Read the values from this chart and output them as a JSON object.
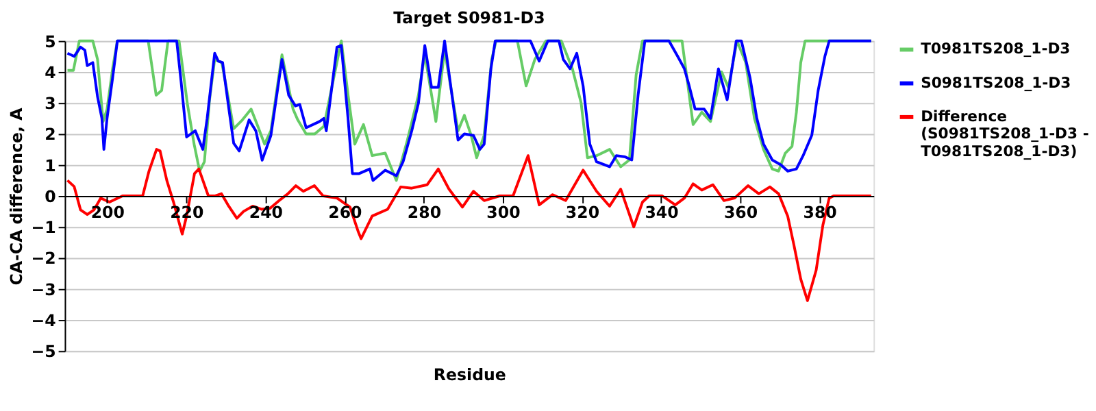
{
  "chart_data": {
    "type": "line",
    "title": "Target S0981-D3",
    "xlabel": "Residue",
    "ylabel": "CA-CA difference, A",
    "xlim": [
      189.3,
      393.7
    ],
    "xticks": [
      200,
      220,
      240,
      260,
      280,
      300,
      320,
      340,
      360,
      380
    ],
    "ylim": [
      -5,
      5
    ],
    "yticks": [
      -5,
      -4,
      -3,
      -2,
      -1,
      0,
      1,
      2,
      3,
      4,
      5
    ],
    "grid": "y",
    "legend": "right",
    "line_style": "solid",
    "series": [
      {
        "name": "T0981TS208_1-D3",
        "color": "#66cc66",
        "x": [
          190,
          191.5,
          193,
          196.4,
          197.6,
          199,
          200,
          201.4,
          202.6,
          210.4,
          212.4,
          213.8,
          215.4,
          218.2,
          220.3,
          222,
          223.4,
          224.6,
          225.9,
          227.2,
          229,
          230.3,
          232,
          234.2,
          236.4,
          238.1,
          239.8,
          241.4,
          244.2,
          247,
          248.2,
          250.3,
          252.5,
          254.8,
          259.2,
          260.9,
          262.6,
          264.8,
          267,
          270.3,
          273.1,
          275.9,
          278.7,
          280.3,
          282,
          283.1,
          285.3,
          287,
          288.7,
          290.3,
          292,
          293.4,
          295.3,
          297.2,
          298.3,
          303.7,
          305.9,
          308.1,
          310.9,
          314.8,
          317.6,
          319.8,
          321.4,
          323.7,
          327,
          329.8,
          332,
          333.7,
          335.3,
          345.3,
          348.1,
          350.3,
          352.5,
          355.3,
          357,
          359.2,
          361.4,
          363.6,
          365.9,
          368.1,
          369.7,
          371.4,
          373.1,
          374.2,
          375.3,
          376.4,
          393.1
        ],
        "values": [
          4.05,
          4.05,
          5,
          5,
          4.4,
          2.4,
          2.8,
          4.1,
          5,
          5,
          3.25,
          3.4,
          5,
          5,
          2.97,
          1.67,
          0.8,
          1.1,
          3.1,
          4.4,
          4.3,
          3.4,
          2.17,
          2.45,
          2.8,
          2.25,
          1.67,
          2.1,
          4.55,
          2.8,
          2.45,
          2.0,
          2.0,
          2.25,
          5,
          3.26,
          1.67,
          2.3,
          1.3,
          1.38,
          0.5,
          1.8,
          3.26,
          4.57,
          3.26,
          2.4,
          4.7,
          3.4,
          2.1,
          2.6,
          1.96,
          1.23,
          1.96,
          4.4,
          5,
          5,
          3.55,
          4.4,
          5,
          5,
          4.1,
          3.0,
          1.23,
          1.3,
          1.5,
          0.94,
          1.16,
          3.9,
          5,
          5,
          2.3,
          2.7,
          2.4,
          4.0,
          3.5,
          5,
          4.3,
          2.5,
          1.5,
          0.87,
          0.8,
          1.38,
          1.6,
          2.7,
          4.3,
          5,
          5
        ]
      },
      {
        "name": "S0981TS208_1-D3",
        "color": "#0000ff",
        "x": [
          190,
          191.7,
          193.3,
          194.4,
          195,
          196.4,
          197.6,
          198.7,
          199.2,
          200,
          201.4,
          202.6,
          217.6,
          218.7,
          220.1,
          222.3,
          224.2,
          225.3,
          227.2,
          228.1,
          229.2,
          230.9,
          232,
          233.4,
          235.9,
          237.6,
          239.2,
          241.4,
          244.2,
          245.9,
          247.6,
          248.7,
          250.3,
          253.7,
          254.8,
          255.4,
          258.1,
          259.2,
          260.9,
          262,
          263.7,
          266.4,
          267.2,
          270.3,
          273.1,
          274.8,
          277,
          278.7,
          280.3,
          282,
          283.7,
          285.3,
          287,
          288.7,
          290.3,
          292.6,
          294.2,
          295.3,
          297,
          298.1,
          307,
          309.2,
          311.4,
          314.2,
          315.3,
          317,
          318.7,
          320.3,
          322,
          323.7,
          327,
          328.7,
          330.9,
          332.6,
          334.2,
          335.9,
          342,
          344.2,
          345.9,
          347,
          348.6,
          350.9,
          352.5,
          354.5,
          356.7,
          359,
          360.3,
          362.5,
          364.2,
          365.9,
          368.1,
          370.3,
          372,
          374.2,
          375.9,
          378.1,
          379.7,
          381.4,
          382.5,
          393.1
        ],
        "values": [
          4.6,
          4.5,
          4.8,
          4.7,
          4.2,
          4.3,
          3.2,
          2.5,
          1.5,
          2.5,
          3.8,
          5,
          5,
          3.7,
          1.9,
          2.1,
          1.5,
          2.5,
          4.6,
          4.35,
          4.3,
          2.7,
          1.7,
          1.45,
          2.45,
          2.1,
          1.15,
          1.95,
          4.4,
          3.25,
          2.9,
          2.95,
          2.2,
          2.4,
          2.5,
          2.1,
          4.8,
          4.85,
          2.5,
          0.72,
          0.72,
          0.87,
          0.5,
          0.83,
          0.65,
          1.1,
          2.1,
          3.0,
          4.85,
          3.5,
          3.5,
          5,
          3.4,
          1.8,
          2.0,
          1.95,
          1.5,
          1.67,
          4.1,
          5,
          5,
          4.35,
          5,
          5,
          4.4,
          4.1,
          4.6,
          3.55,
          1.67,
          1.1,
          0.94,
          1.3,
          1.26,
          1.16,
          3.26,
          5,
          5,
          4.5,
          4.1,
          3.6,
          2.8,
          2.8,
          2.5,
          4.1,
          3.1,
          5,
          5,
          3.8,
          2.5,
          1.67,
          1.16,
          1.0,
          0.8,
          0.87,
          1.3,
          1.96,
          3.4,
          4.5,
          5,
          5
        ]
      },
      {
        "name": "Difference\n(S0981TS208_1-D3 -\nT0981TS208_1-D3)",
        "color": "#ff0000",
        "x": [
          190,
          191.7,
          193.3,
          195,
          196.7,
          198.4,
          200.6,
          203.9,
          209,
          210.6,
          212.5,
          213.4,
          215.1,
          216.8,
          219,
          220.1,
          222.1,
          223.2,
          225.6,
          227.2,
          228.9,
          230.6,
          232.8,
          234.5,
          236.8,
          239,
          241.2,
          243.5,
          245.7,
          247.7,
          249.6,
          252.4,
          254.6,
          258.1,
          261.4,
          263.5,
          264.2,
          267,
          270.9,
          274.2,
          277,
          280.9,
          283.7,
          286.4,
          289.8,
          292.6,
          295.3,
          299.2,
          302.6,
          306.4,
          309.2,
          312.6,
          315.9,
          320.3,
          323.7,
          327,
          329.8,
          333.1,
          335.3,
          337,
          340.3,
          343.6,
          345.9,
          348.1,
          350.3,
          353.1,
          355.9,
          358.6,
          362,
          364.7,
          367.5,
          369.7,
          372,
          373.6,
          375.3,
          377,
          379.2,
          380.9,
          382.5,
          383.6,
          393.1
        ],
        "values": [
          0.5,
          0.3,
          -0.45,
          -0.6,
          -0.45,
          -0.07,
          -0.2,
          0,
          0,
          0.8,
          1.5,
          1.45,
          0.5,
          -0.2,
          -1.23,
          -0.65,
          0.72,
          0.87,
          0,
          0,
          0.07,
          -0.3,
          -0.72,
          -0.5,
          -0.33,
          -0.43,
          -0.4,
          -0.15,
          0.07,
          0.33,
          0.15,
          0.33,
          0,
          -0.07,
          -0.36,
          -1.16,
          -1.38,
          -0.65,
          -0.43,
          0.29,
          0.25,
          0.36,
          0.87,
          0.22,
          -0.36,
          0.15,
          -0.15,
          0,
          0,
          1.3,
          -0.29,
          0.04,
          -0.15,
          0.83,
          0.15,
          -0.33,
          0.22,
          -1.0,
          -0.2,
          0,
          0,
          -0.29,
          -0.07,
          0.39,
          0.19,
          0.36,
          -0.15,
          -0.07,
          0.33,
          0.07,
          0.29,
          0.07,
          -0.65,
          -1.6,
          -2.68,
          -3.38,
          -2.39,
          -0.94,
          -0.07,
          0,
          0
        ]
      }
    ]
  }
}
